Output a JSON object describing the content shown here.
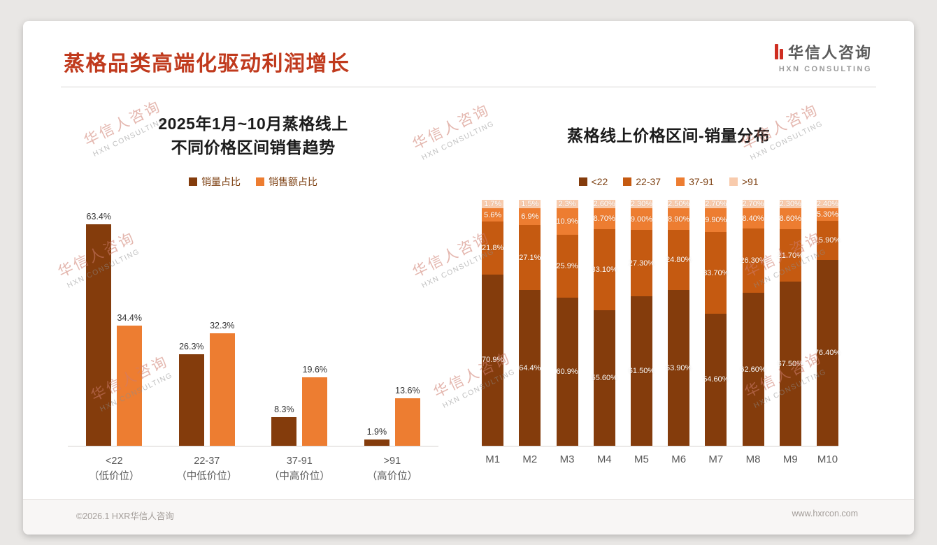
{
  "page": {
    "title": "蒸格品类高端化驱动利润增长",
    "footer_left": "©2026.1 HXR华信人咨询",
    "footer_right": "www.hxrcon.com"
  },
  "logo": {
    "name_cn": "华信人咨询",
    "name_en": "HXN CONSULTING"
  },
  "watermark": {
    "line1": "华信人咨询",
    "line2": "HXN CONSULTING"
  },
  "colors": {
    "title_red": "#c03a1d",
    "dark_brown": "#843C0C",
    "mid_orange": "#C55A11",
    "orange": "#ED7D31",
    "peach": "#F8CBAD"
  },
  "chart_data": [
    {
      "type": "bar",
      "title": "2025年1月~10月蒸格线上 不同价格区间销售趋势",
      "title_lines": [
        "2025年1月~10月蒸格线上",
        "不同价格区间销售趋势"
      ],
      "categories": [
        "<22",
        "22-37",
        "37-91",
        ">91"
      ],
      "category_sublabels": [
        "（低价位）",
        "（中低价位）",
        "（中高价位）",
        "（高价位）"
      ],
      "series": [
        {
          "name": "销量占比",
          "color": "#843C0C",
          "values": [
            63.4,
            26.3,
            8.3,
            1.9
          ],
          "labels": [
            "63.4%",
            "26.3%",
            "8.3%",
            "1.9%"
          ]
        },
        {
          "name": "销售额占比",
          "color": "#ED7D31",
          "values": [
            34.4,
            32.3,
            19.6,
            13.6
          ],
          "labels": [
            "34.4%",
            "32.3%",
            "19.6%",
            "13.6%"
          ]
        }
      ],
      "xlabel": "",
      "ylabel": "",
      "ylim": [
        0,
        70
      ],
      "grid": false,
      "legend_position": "top"
    },
    {
      "type": "bar",
      "stacked": true,
      "title": "蒸格线上价格区间-销量分布",
      "categories": [
        "M1",
        "M2",
        "M3",
        "M4",
        "M5",
        "M6",
        "M7",
        "M8",
        "M9",
        "M10"
      ],
      "series": [
        {
          "name": "<22",
          "color": "#843C0C",
          "values": [
            70.9,
            64.4,
            60.9,
            55.6,
            61.5,
            63.9,
            54.6,
            62.6,
            67.5,
            76.4
          ],
          "labels": [
            "70.9%",
            "64.4%",
            "60.9%",
            "55.60%",
            "61.50%",
            "63.90%",
            "54.60%",
            "62.60%",
            "67.50%",
            "76.40%"
          ]
        },
        {
          "name": "22-37",
          "color": "#C55A11",
          "values": [
            21.8,
            27.1,
            25.9,
            33.1,
            27.3,
            24.8,
            33.7,
            26.3,
            21.7,
            15.9
          ],
          "labels": [
            "21.8%",
            "27.1%",
            "25.9%",
            "33.10%",
            "27.30%",
            "24.80%",
            "33.70%",
            "26.30%",
            "21.70%",
            "15.90%"
          ]
        },
        {
          "name": "37-91",
          "color": "#ED7D31",
          "values": [
            5.6,
            6.9,
            10.9,
            8.7,
            9.0,
            8.9,
            9.9,
            8.4,
            8.6,
            5.3
          ],
          "labels": [
            "5.6%",
            "6.9%",
            "10.9%",
            "8.70%",
            "9.00%",
            "8.90%",
            "9.90%",
            "8.40%",
            "8.60%",
            "5.30%"
          ]
        },
        {
          "name": ">91",
          "color": "#F8CBAD",
          "values": [
            1.7,
            1.5,
            2.3,
            2.6,
            2.3,
            2.5,
            2.7,
            2.7,
            2.3,
            2.4
          ],
          "labels": [
            "1.7%",
            "1.5%",
            "2.3%",
            "2.60%",
            "2.30%",
            "2.50%",
            "2.70%",
            "2.70%",
            "2.30%",
            "2.40%"
          ]
        }
      ],
      "xlabel": "",
      "ylabel": "",
      "ylim": [
        0,
        100
      ],
      "grid": false,
      "legend_position": "top"
    }
  ]
}
